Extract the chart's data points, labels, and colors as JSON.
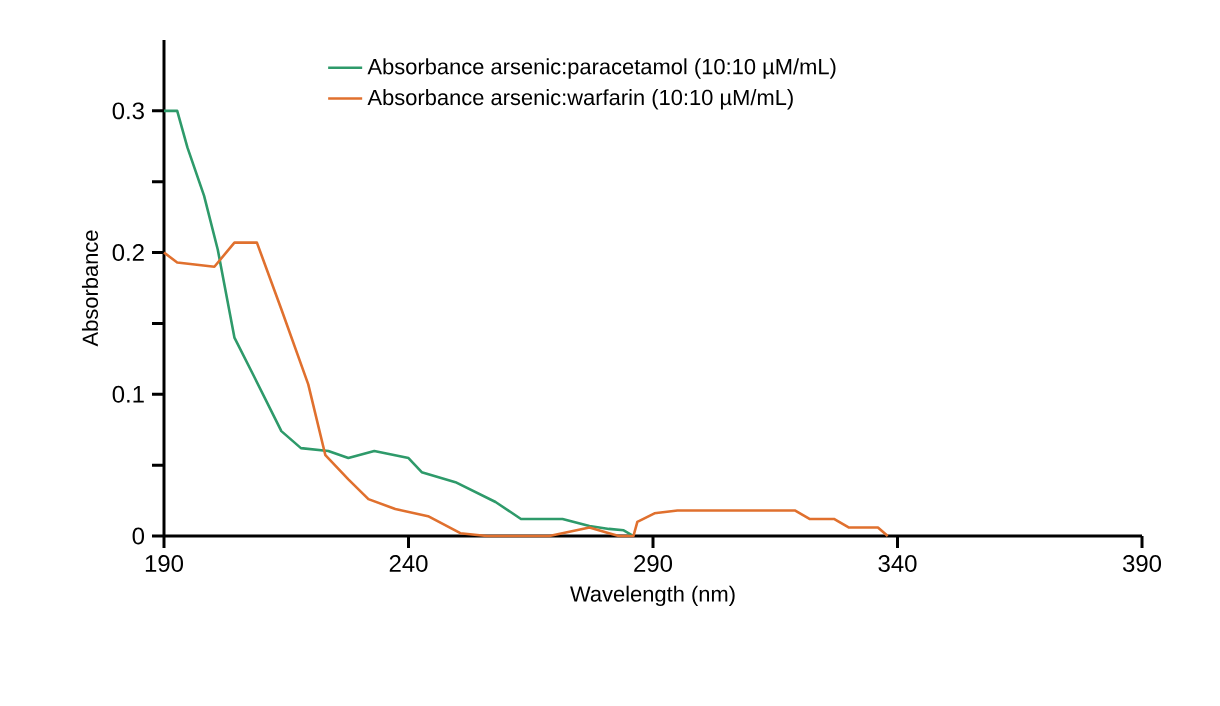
{
  "chart_data": {
    "type": "line",
    "xlabel": "Wavelength (nm)",
    "ylabel": "Absorbance",
    "xlim": [
      190,
      390
    ],
    "xticks": [
      190,
      240,
      290,
      340,
      390
    ],
    "ylim": [
      0,
      0.35
    ],
    "yticks": [
      0,
      {
        "value": 0.05,
        "label": null
      },
      0.1,
      {
        "value": 0.15,
        "label": null
      },
      0.2,
      {
        "value": 0.25,
        "label": null
      },
      0.3
    ],
    "grid": false,
    "legend": "top",
    "marker": "none",
    "line_style": "solid",
    "series": [
      {
        "name": "Absorbance arsenic:paracetamol (10:10 µM/mL)",
        "color": "#2e9a6a",
        "x": [
          190,
          192.7,
          194.8,
          198.2,
          201,
          204.4,
          208.5,
          214,
          218,
          223.6,
          227.7,
          233,
          240,
          242.7,
          249.6,
          257.8,
          263,
          271.5,
          277,
          281,
          284,
          286
        ],
        "values": [
          0.3,
          0.3,
          0.274,
          0.24,
          0.202,
          0.14,
          0.112,
          0.074,
          0.062,
          0.06,
          0.055,
          0.06,
          0.055,
          0.045,
          0.038,
          0.024,
          0.012,
          0.012,
          0.007,
          0.005,
          0.004,
          0
        ]
      },
      {
        "name": "Absorbance arsenic:warfarin (10:10 µM/mL)",
        "color": "#e0702e",
        "x": [
          190,
          192.7,
          200.3,
          204.4,
          209,
          214,
          219.5,
          223,
          227.7,
          231.8,
          237.3,
          244,
          250.6,
          256,
          268.8,
          277,
          281,
          283,
          286,
          286.8,
          290.3,
          295,
          319,
          322,
          327,
          330,
          336,
          338
        ],
        "values": [
          0.2,
          0.193,
          0.19,
          0.207,
          0.207,
          0.16,
          0.107,
          0.057,
          0.04,
          0.026,
          0.019,
          0.014,
          0.002,
          0,
          0,
          0.006,
          0.002,
          0,
          0,
          0.01,
          0.016,
          0.018,
          0.018,
          0.012,
          0.012,
          0.006,
          0.006,
          0
        ]
      }
    ]
  }
}
